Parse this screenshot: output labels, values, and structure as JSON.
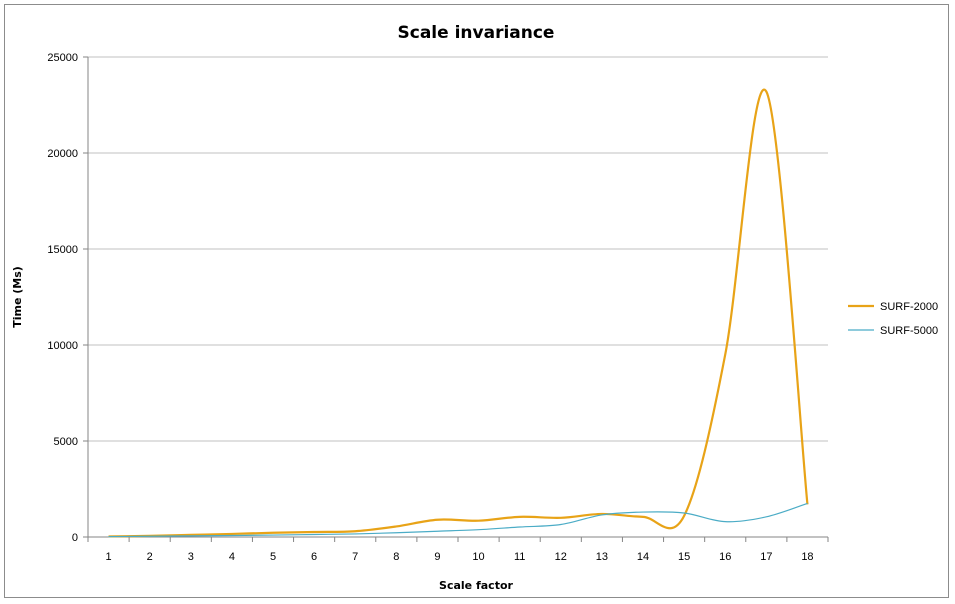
{
  "chart_data": {
    "type": "line",
    "title": "Scale invariance",
    "xlabel": "Scale factor",
    "ylabel": "Time (Ms)",
    "categories": [
      "1",
      "2",
      "3",
      "4",
      "5",
      "6",
      "7",
      "8",
      "9",
      "10",
      "11",
      "12",
      "13",
      "14",
      "15",
      "16",
      "17",
      "18"
    ],
    "ylim": [
      0,
      25000
    ],
    "yticks": [
      0,
      5000,
      10000,
      15000,
      20000,
      25000
    ],
    "grid": true,
    "legend": "right",
    "series": [
      {
        "name": "SURF-2000",
        "color": "#e8a317",
        "values": [
          30,
          60,
          110,
          160,
          220,
          260,
          300,
          550,
          900,
          850,
          1050,
          1000,
          1200,
          1050,
          1100,
          9500,
          23200,
          1700
        ]
      },
      {
        "name": "SURF-5000",
        "color": "#4bacc6",
        "values": [
          20,
          40,
          60,
          80,
          100,
          130,
          160,
          220,
          300,
          380,
          520,
          650,
          1150,
          1300,
          1250,
          800,
          1050,
          1750
        ]
      }
    ]
  }
}
